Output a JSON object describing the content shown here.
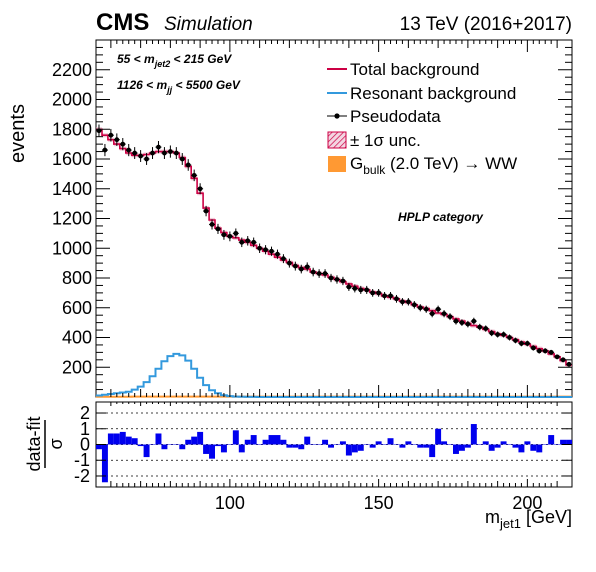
{
  "header": {
    "experiment": "CMS",
    "subtitle": "Simulation",
    "energy": "13 TeV (2016+2017)"
  },
  "annotations": {
    "cut1": {
      "pre": "55 < m",
      "sub": "jet2",
      "post": " < 215 GeV"
    },
    "cut2": {
      "pre": "1126 < m",
      "sub": "jj",
      "post": " < 5500 GeV"
    },
    "category": "HPLP category"
  },
  "legend": {
    "total": "Total background",
    "resonant": "Resonant background",
    "pseudodata": "Pseudodata",
    "unc": "± 1σ unc.",
    "signal_pre": "G",
    "signal_sub": "bulk",
    "signal_post": " (2.0 TeV) → WW"
  },
  "colors": {
    "total": "#cc0044",
    "resonant": "#3399dd",
    "data": "#000000",
    "unc": "#cc0044",
    "signal": "#ff9933",
    "pull": "#0000ee"
  },
  "chart_data": [
    {
      "type": "line",
      "xlim": [
        55,
        215
      ],
      "ylim": [
        0,
        2400
      ],
      "ylabel": "events",
      "yticks": [
        200,
        400,
        600,
        800,
        1000,
        1200,
        1400,
        1600,
        1800,
        2000,
        2200
      ],
      "x": [
        56,
        58,
        60,
        62,
        64,
        66,
        68,
        70,
        72,
        74,
        76,
        78,
        80,
        82,
        84,
        86,
        88,
        90,
        92,
        94,
        96,
        98,
        100,
        102,
        104,
        106,
        108,
        110,
        112,
        114,
        116,
        118,
        120,
        122,
        124,
        126,
        128,
        130,
        132,
        134,
        136,
        138,
        140,
        142,
        144,
        146,
        148,
        150,
        152,
        154,
        156,
        158,
        160,
        162,
        164,
        166,
        168,
        170,
        172,
        174,
        176,
        178,
        180,
        182,
        184,
        186,
        188,
        190,
        192,
        194,
        196,
        198,
        200,
        202,
        204,
        206,
        208,
        210,
        212,
        214
      ],
      "series": [
        {
          "name": "Total background",
          "values": [
            1800,
            1760,
            1730,
            1700,
            1670,
            1640,
            1625,
            1625,
            1630,
            1640,
            1650,
            1650,
            1650,
            1640,
            1610,
            1550,
            1470,
            1370,
            1270,
            1190,
            1135,
            1105,
            1080,
            1070,
            1055,
            1040,
            1020,
            1000,
            980,
            960,
            940,
            920,
            905,
            885,
            870,
            860,
            840,
            830,
            820,
            805,
            790,
            775,
            760,
            745,
            730,
            720,
            705,
            695,
            680,
            670,
            660,
            645,
            635,
            620,
            605,
            595,
            580,
            565,
            555,
            540,
            525,
            510,
            495,
            480,
            470,
            455,
            440,
            425,
            415,
            400,
            385,
            370,
            355,
            340,
            325,
            310,
            290,
            270,
            245,
            215
          ]
        },
        {
          "name": "Resonant background",
          "values": [
            10,
            15,
            20,
            25,
            30,
            35,
            50,
            70,
            100,
            140,
            190,
            240,
            275,
            290,
            280,
            245,
            190,
            130,
            80,
            45,
            25,
            12,
            6,
            3,
            2,
            1,
            1,
            0,
            0,
            0,
            0,
            0,
            0,
            0,
            0,
            0,
            0,
            0,
            0,
            0,
            0,
            0,
            0,
            0,
            0,
            0,
            0,
            0,
            0,
            0,
            0,
            0,
            0,
            0,
            0,
            0,
            0,
            0,
            0,
            0,
            0,
            0,
            0,
            0,
            0,
            0,
            0,
            0,
            0,
            0,
            0,
            0,
            0,
            0,
            0,
            0,
            0,
            0,
            0,
            0
          ]
        },
        {
          "name": "Pseudodata",
          "values": [
            1790,
            1660,
            1760,
            1730,
            1700,
            1660,
            1640,
            1620,
            1600,
            1640,
            1680,
            1640,
            1650,
            1640,
            1600,
            1560,
            1490,
            1400,
            1250,
            1160,
            1130,
            1090,
            1080,
            1100,
            1040,
            1050,
            1040,
            1000,
            990,
            980,
            960,
            930,
            900,
            880,
            860,
            875,
            840,
            830,
            830,
            800,
            790,
            780,
            740,
            730,
            720,
            720,
            700,
            700,
            680,
            680,
            660,
            640,
            640,
            620,
            600,
            590,
            560,
            590,
            560,
            540,
            510,
            500,
            490,
            510,
            470,
            460,
            430,
            420,
            420,
            400,
            380,
            360,
            360,
            330,
            310,
            310,
            300,
            270,
            250,
            220
          ],
          "errors": [
            42,
            41,
            42,
            42,
            41,
            41,
            40,
            40,
            40,
            40,
            41,
            40,
            41,
            40,
            40,
            39,
            39,
            37,
            35,
            34,
            34,
            33,
            33,
            33,
            32,
            32,
            32,
            32,
            31,
            31,
            31,
            30,
            30,
            30,
            29,
            30,
            29,
            29,
            29,
            28,
            28,
            28,
            27,
            27,
            27,
            27,
            26,
            26,
            26,
            26,
            26,
            25,
            25,
            25,
            24,
            24,
            24,
            24,
            24,
            23,
            23,
            22,
            22,
            23,
            22,
            21,
            21,
            20,
            20,
            20,
            19,
            19,
            19,
            18,
            18,
            18,
            17,
            16,
            16,
            15
          ]
        },
        {
          "name": "Gbulk (2.0 TeV) → WW",
          "values": [
            2,
            2,
            2,
            2,
            2,
            2,
            3,
            3,
            3,
            3,
            3,
            3,
            3,
            3,
            3,
            3,
            3,
            3,
            3,
            3,
            3,
            3,
            3,
            3,
            3,
            3,
            3,
            3,
            3,
            3,
            3,
            3,
            3,
            3,
            3,
            3,
            3,
            3,
            3,
            3,
            3,
            3,
            3,
            3,
            3,
            3,
            3,
            3,
            3,
            3,
            3,
            3,
            3,
            3,
            3,
            3,
            3,
            3,
            3,
            3,
            3,
            3,
            3,
            3,
            3,
            3,
            3,
            3,
            3,
            3,
            3,
            3,
            3,
            3,
            3,
            3,
            3,
            3,
            3,
            3
          ]
        }
      ],
      "pull_panel": {
        "type": "bar",
        "ylim": [
          -2.7,
          2.7
        ],
        "ylabel_num": "data-fit",
        "ylabel_den": "σ",
        "yticks": [
          -2,
          -1,
          0,
          1,
          2
        ],
        "xticks": [
          100,
          150,
          200
        ],
        "xlabel_pre": "m",
        "xlabel_sub": "jet1",
        "xlabel_post": " [GeV]",
        "values": [
          -0.3,
          -2.4,
          0.7,
          0.7,
          0.8,
          0.5,
          0.4,
          -0.1,
          -0.8,
          0.0,
          0.7,
          -0.3,
          0.0,
          0.0,
          -0.3,
          0.3,
          0.5,
          0.8,
          -0.6,
          -0.9,
          -0.1,
          -0.5,
          0.0,
          0.9,
          -0.5,
          0.3,
          0.6,
          0.0,
          0.3,
          0.6,
          0.6,
          0.3,
          -0.2,
          -0.2,
          -0.3,
          0.5,
          0.0,
          0.0,
          0.3,
          -0.2,
          0.0,
          0.2,
          -0.7,
          -0.5,
          -0.4,
          0.0,
          -0.2,
          0.2,
          0.0,
          0.4,
          0.0,
          -0.2,
          0.2,
          0.0,
          -0.2,
          -0.2,
          -0.8,
          1.0,
          0.2,
          0.0,
          -0.6,
          -0.4,
          -0.2,
          1.3,
          0.0,
          0.2,
          -0.4,
          -0.2,
          0.2,
          0.0,
          -0.2,
          -0.5,
          0.2,
          -0.4,
          -0.5,
          0.0,
          0.6,
          0.0,
          0.3,
          0.3
        ]
      }
    }
  ]
}
